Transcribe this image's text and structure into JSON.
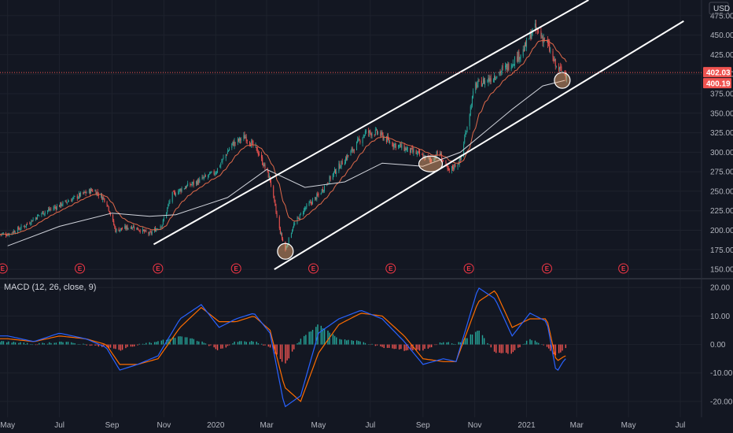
{
  "chart_data": [
    {
      "type": "candlestick",
      "currency": "USD",
      "ylim": [
        140,
        495
      ],
      "y_ticks": [
        "475.00",
        "450.00",
        "425.00",
        "400.00",
        "375.00",
        "350.00",
        "325.00",
        "300.00",
        "275.00",
        "250.00",
        "225.00",
        "200.00",
        "175.00",
        "150.00"
      ],
      "last_price": "402.03",
      "current_price": "400.19",
      "colors": {
        "up": "#26a69a",
        "down": "#ef5350",
        "ma": "#d1d4dc",
        "ema": "#e0694a",
        "channel": "#ffffff",
        "bg": "#131722",
        "grid": "#1f2430"
      },
      "x_dates": [
        "2019-05",
        "2019-07",
        "2019-09",
        "2019-11",
        "2020-01",
        "2020-03",
        "2020-05",
        "2020-07",
        "2020-09",
        "2020-11",
        "2021-01",
        "2021-03",
        "2021-05",
        "2021-07"
      ],
      "close_series": {
        "x": [
          "2019-05-01",
          "2019-05-20",
          "2019-06-10",
          "2019-07-01",
          "2019-07-25",
          "2019-08-10",
          "2019-08-25",
          "2019-09-05",
          "2019-09-25",
          "2019-10-15",
          "2019-10-30",
          "2019-11-10",
          "2019-11-25",
          "2019-12-10",
          "2020-01-01",
          "2020-01-20",
          "2020-02-05",
          "2020-02-20",
          "2020-03-05",
          "2020-03-15",
          "2020-03-23",
          "2020-04-01",
          "2020-04-15",
          "2020-05-01",
          "2020-05-20",
          "2020-06-08",
          "2020-06-25",
          "2020-07-10",
          "2020-07-25",
          "2020-08-10",
          "2020-08-25",
          "2020-09-10",
          "2020-09-20",
          "2020-10-01",
          "2020-10-15",
          "2020-11-01",
          "2020-11-20",
          "2020-12-10",
          "2020-12-28",
          "2021-01-10",
          "2021-01-25",
          "2021-02-05",
          "2021-02-15"
        ],
        "y": [
          195,
          205,
          222,
          232,
          245,
          252,
          238,
          200,
          205,
          195,
          208,
          245,
          255,
          262,
          275,
          310,
          320,
          300,
          265,
          205,
          175,
          205,
          228,
          245,
          275,
          300,
          325,
          325,
          312,
          305,
          298,
          290,
          300,
          275,
          290,
          385,
          395,
          410,
          430,
          460,
          440,
          408,
          402
        ]
      },
      "sma_series": {
        "x": [
          "2019-05-01",
          "2019-07-01",
          "2019-09-01",
          "2019-10-15",
          "2019-11-15",
          "2020-01-15",
          "2020-03-01",
          "2020-04-15",
          "2020-06-01",
          "2020-07-15",
          "2020-09-01",
          "2020-10-15",
          "2020-12-15",
          "2021-01-20",
          "2021-02-15"
        ],
        "y": [
          180,
          205,
          222,
          218,
          220,
          242,
          278,
          255,
          262,
          286,
          282,
          300,
          355,
          385,
          392
        ]
      },
      "channel_lines": [
        {
          "from": {
            "x": "2019-10-20",
            "y": 182
          },
          "to": {
            "x": "2021-03-15",
            "y": 495
          }
        },
        {
          "from": {
            "x": "2020-03-10",
            "y": 150
          },
          "to": {
            "x": "2021-07-05",
            "y": 468
          }
        }
      ],
      "highlight_circles": [
        {
          "x": "2020-03-23",
          "y": 173
        },
        {
          "x": "2020-09-10",
          "y": 285
        },
        {
          "x": "2021-02-12",
          "y": 392
        }
      ],
      "earnings_markers": {
        "label": "E",
        "x": [
          "2019-04-25",
          "2019-07-25",
          "2019-10-25",
          "2020-01-25",
          "2020-04-25",
          "2020-07-25",
          "2020-10-25",
          "2021-01-25",
          "2021-04-25"
        ]
      }
    },
    {
      "type": "histogram+line",
      "title": "MACD (12, 26, close, 9)",
      "ylim": [
        -25,
        22
      ],
      "y_ticks": [
        "20.00",
        "10.00",
        "0.00",
        "-10.00",
        "-20.00"
      ],
      "colors": {
        "macd": "#2962ff",
        "signal": "#ff6d00",
        "hist_up": "#26a69a",
        "hist_down": "#ef5350"
      },
      "macd_series": {
        "x": [
          "2019-05-01",
          "2019-06-01",
          "2019-07-01",
          "2019-08-01",
          "2019-08-25",
          "2019-09-10",
          "2019-10-01",
          "2019-10-25",
          "2019-11-20",
          "2019-12-15",
          "2020-01-05",
          "2020-01-25",
          "2020-02-15",
          "2020-03-05",
          "2020-03-22",
          "2020-04-10",
          "2020-05-01",
          "2020-05-25",
          "2020-06-20",
          "2020-07-15",
          "2020-08-10",
          "2020-09-01",
          "2020-09-25",
          "2020-10-10",
          "2020-11-05",
          "2020-11-25",
          "2020-12-15",
          "2021-01-05",
          "2021-01-25",
          "2021-02-05",
          "2021-02-15"
        ],
        "y": [
          3,
          1,
          4,
          2,
          -1,
          -9,
          -7,
          -4,
          9,
          14,
          6,
          9,
          11,
          4,
          -22,
          -18,
          4,
          9,
          12,
          9,
          1,
          -7,
          -5,
          -6,
          20,
          16,
          3,
          11,
          8,
          -10,
          -5
        ]
      },
      "signal_series": {
        "x": [
          "2019-05-01",
          "2019-06-01",
          "2019-07-01",
          "2019-08-01",
          "2019-08-25",
          "2019-09-10",
          "2019-10-01",
          "2019-10-25",
          "2019-11-20",
          "2019-12-15",
          "2020-01-05",
          "2020-01-25",
          "2020-02-15",
          "2020-03-05",
          "2020-03-22",
          "2020-04-10",
          "2020-05-01",
          "2020-05-25",
          "2020-06-20",
          "2020-07-15",
          "2020-08-10",
          "2020-09-01",
          "2020-09-25",
          "2020-10-10",
          "2020-11-05",
          "2020-11-25",
          "2020-12-15",
          "2021-01-05",
          "2021-01-25",
          "2021-02-05",
          "2021-02-15"
        ],
        "y": [
          2,
          1,
          3,
          2,
          0,
          -7,
          -7,
          -5,
          6,
          13,
          8,
          8,
          10,
          5,
          -15,
          -20,
          -3,
          7,
          11,
          10,
          3,
          -5,
          -6,
          -6,
          15,
          19,
          6,
          9,
          9,
          -6,
          -4
        ]
      }
    }
  ]
}
